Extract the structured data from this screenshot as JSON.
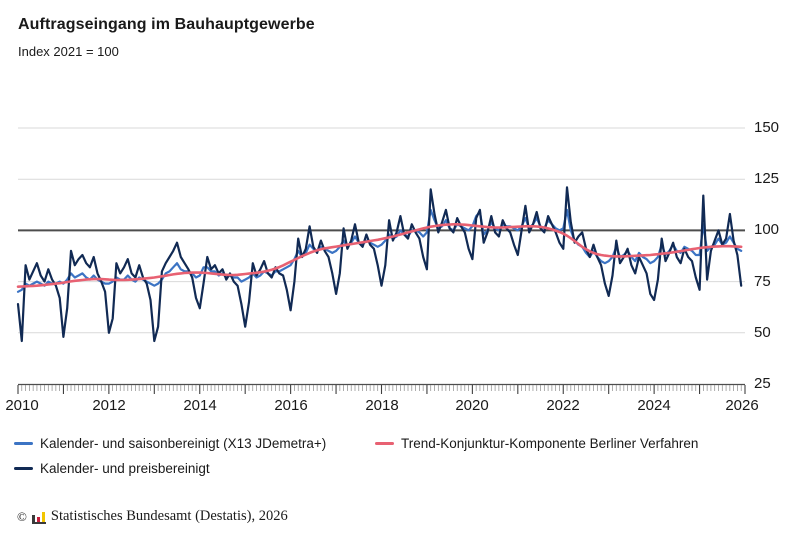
{
  "header": {
    "title": "Auftragseingang im Bauhauptgewerbe",
    "subtitle": "Index 2021 = 100"
  },
  "chart_data": {
    "type": "line",
    "title": "Auftragseingang im Bauhauptgewerbe",
    "subtitle": "Index 2021 = 100",
    "x_unit": "month",
    "x_range_start": "2010-01",
    "x_range_end": "2025-12",
    "x_tick_labels": [
      "2010",
      "2012",
      "2014",
      "2016",
      "2018",
      "2020",
      "2022",
      "2024",
      "2026"
    ],
    "y_tick_labels": [
      "150",
      "125",
      "100",
      "75",
      "50",
      "25"
    ],
    "y_ticks": [
      150,
      125,
      100,
      75,
      50,
      25
    ],
    "ylim": [
      25,
      150
    ],
    "reference_line": 100,
    "grid": "horizontal-light",
    "legend_position": "bottom-left",
    "series": [
      {
        "name": "Kalender- und saisonbereinigt (X13 JDemetra+)",
        "color": "#3c74c4",
        "stroke_width": 2.2,
        "values": [
          70,
          71,
          74,
          73,
          74,
          75,
          74,
          73,
          75,
          74,
          74,
          75,
          74,
          76,
          79,
          77,
          78,
          79,
          77,
          76,
          78,
          76,
          75,
          74,
          74,
          75,
          77,
          76,
          76,
          78,
          76,
          75,
          77,
          76,
          75,
          74,
          73,
          74,
          76,
          79,
          80,
          82,
          84,
          81,
          80,
          80,
          79,
          77,
          78,
          82,
          82,
          80,
          80,
          78,
          79,
          77,
          78,
          77,
          77,
          75,
          76,
          77,
          79,
          77,
          78,
          80,
          79,
          78,
          80,
          80,
          81,
          82,
          83,
          86,
          90,
          87,
          89,
          93,
          91,
          90,
          92,
          91,
          90,
          89,
          90,
          92,
          95,
          92,
          94,
          97,
          94,
          93,
          95,
          94,
          93,
          92,
          93,
          95,
          98,
          96,
          97,
          100,
          98,
          97,
          100,
          100,
          99,
          97,
          99,
          110,
          105,
          101,
          102,
          105,
          101,
          100,
          103,
          102,
          101,
          100,
          102,
          107,
          109,
          98,
          100,
          104,
          101,
          100,
          103,
          102,
          102,
          101,
          100,
          102,
          106,
          101,
          103,
          106,
          102,
          101,
          105,
          103,
          101,
          100,
          101,
          110,
          100,
          95,
          93,
          92,
          89,
          87,
          90,
          87,
          85,
          84,
          85,
          87,
          92,
          87,
          88,
          90,
          87,
          85,
          89,
          87,
          86,
          84,
          85,
          87,
          93,
          88,
          90,
          93,
          90,
          89,
          92,
          91,
          90,
          88,
          88,
          103,
          90,
          92,
          93,
          96,
          93,
          94,
          97,
          94,
          91,
          90
        ]
      },
      {
        "name": "Trend-Konjunktur-Komponente Berliner Verfahren",
        "color": "#e86172",
        "stroke_width": 2.6,
        "values": [
          72.5,
          72.6,
          72.7,
          72.8,
          72.9,
          73.0,
          73.2,
          73.4,
          73.6,
          73.8,
          74.0,
          74.2,
          74.5,
          74.8,
          75.1,
          75.4,
          75.6,
          75.8,
          76.0,
          76.1,
          76.2,
          76.2,
          76.2,
          76.1,
          76.0,
          75.9,
          75.8,
          75.8,
          75.8,
          75.9,
          76.0,
          76.1,
          76.2,
          76.4,
          76.6,
          76.8,
          77.0,
          77.3,
          77.6,
          77.9,
          78.2,
          78.5,
          78.8,
          79.0,
          79.2,
          79.3,
          79.4,
          79.4,
          79.4,
          79.3,
          79.2,
          79.0,
          78.8,
          78.6,
          78.4,
          78.3,
          78.2,
          78.2,
          78.3,
          78.5,
          78.7,
          78.9,
          79.1,
          79.3,
          79.6,
          79.9,
          80.3,
          80.8,
          81.4,
          82.1,
          82.9,
          83.8,
          84.7,
          85.6,
          86.5,
          87.4,
          88.2,
          89.0,
          89.7,
          90.3,
          90.8,
          91.2,
          91.5,
          91.8,
          92.1,
          92.4,
          92.7,
          93.0,
          93.3,
          93.6,
          93.9,
          94.2,
          94.5,
          94.8,
          95.1,
          95.4,
          95.8,
          96.2,
          96.6,
          97.0,
          97.5,
          98.0,
          98.5,
          99.0,
          99.5,
          100.0,
          100.5,
          101.0,
          101.4,
          101.8,
          102.1,
          102.4,
          102.6,
          102.8,
          102.9,
          103.0,
          103.0,
          102.9,
          102.8,
          102.6,
          102.4,
          102.2,
          102.0,
          101.8,
          101.6,
          101.5,
          101.4,
          101.4,
          101.4,
          101.5,
          101.6,
          101.7,
          101.8,
          101.9,
          102.0,
          102.0,
          102.0,
          101.9,
          101.7,
          101.4,
          101.0,
          100.5,
          99.9,
          99.2,
          98.4,
          97.4,
          96.2,
          94.8,
          93.4,
          92.0,
          90.8,
          89.8,
          89.0,
          88.4,
          88.0,
          87.7,
          87.5,
          87.4,
          87.3,
          87.3,
          87.3,
          87.4,
          87.5,
          87.6,
          87.7,
          87.8,
          87.9,
          88.0,
          88.2,
          88.4,
          88.6,
          88.8,
          89.0,
          89.3,
          89.6,
          89.9,
          90.2,
          90.5,
          90.8,
          91.1,
          91.4,
          91.6,
          91.8,
          92.0,
          92.1,
          92.2,
          92.3,
          92.3,
          92.3,
          92.2,
          92.1,
          92.0
        ]
      },
      {
        "name": "Kalender- und preisbereinigt",
        "color": "#112a54",
        "stroke_width": 2.2,
        "values": [
          64,
          46,
          83,
          76,
          80,
          84,
          78,
          75,
          81,
          76,
          73,
          67,
          48,
          62,
          90,
          83,
          86,
          88,
          84,
          82,
          87,
          79,
          75,
          70,
          50,
          57,
          84,
          79,
          82,
          86,
          79,
          77,
          83,
          77,
          74,
          66,
          46,
          53,
          80,
          84,
          87,
          90,
          94,
          87,
          84,
          81,
          77,
          67,
          62,
          74,
          87,
          81,
          83,
          79,
          81,
          76,
          79,
          75,
          73,
          64,
          53,
          65,
          84,
          78,
          81,
          85,
          79,
          77,
          82,
          79,
          78,
          71,
          61,
          75,
          96,
          87,
          91,
          102,
          92,
          89,
          95,
          90,
          87,
          79,
          69,
          79,
          101,
          91,
          95,
          103,
          94,
          92,
          98,
          93,
          91,
          83,
          73,
          83,
          105,
          95,
          99,
          107,
          98,
          96,
          103,
          99,
          96,
          87,
          81,
          120,
          108,
          99,
          104,
          110,
          101,
          99,
          106,
          102,
          99,
          91,
          86,
          106,
          110,
          94,
          99,
          107,
          99,
          97,
          105,
          101,
          99,
          93,
          88,
          100,
          112,
          99,
          103,
          109,
          101,
          99,
          107,
          103,
          99,
          94,
          91,
          121,
          104,
          94,
          97,
          99,
          91,
          87,
          93,
          87,
          83,
          74,
          68,
          78,
          95,
          84,
          87,
          91,
          83,
          79,
          87,
          83,
          79,
          69,
          66,
          76,
          96,
          85,
          89,
          94,
          87,
          84,
          91,
          87,
          85,
          77,
          71,
          117,
          76,
          90,
          95,
          100,
          93,
          96,
          108,
          95,
          88,
          73
        ]
      }
    ]
  },
  "footer": {
    "copyright": "©",
    "source": "Statistisches Bundesamt (Destatis), 2026"
  },
  "colors": {
    "series_seasonal_blue": "#3c74c4",
    "series_trend_red": "#e86172",
    "series_price_navy": "#112a54",
    "grid_light": "#d9d9d9",
    "axis_dark": "#4d4d4d",
    "text": "#1a1a1a",
    "logo_black": "#3a3a3a",
    "logo_red": "#c81e3c",
    "logo_gold": "#f2c500"
  }
}
